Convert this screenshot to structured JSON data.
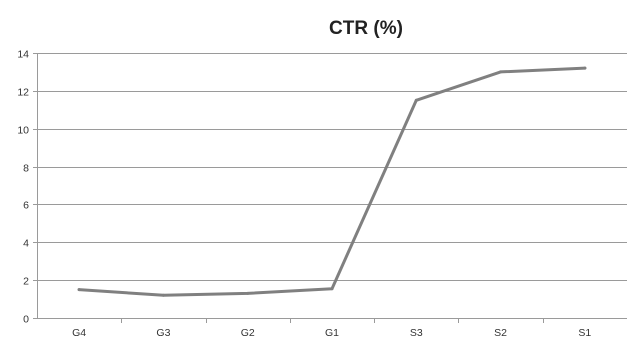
{
  "chart_data": {
    "type": "line",
    "title": "CTR (%)",
    "xlabel": "",
    "ylabel": "",
    "categories": [
      "G4",
      "G3",
      "G2",
      "G1",
      "S3",
      "S2",
      "S1"
    ],
    "series": [
      {
        "values": [
          1.5,
          1.2,
          1.3,
          1.55,
          11.5,
          13.0,
          13.2
        ]
      }
    ],
    "ylim": [
      0,
      14
    ],
    "yticks": [
      0,
      2,
      4,
      6,
      8,
      10,
      12,
      14
    ],
    "grid": true,
    "legend": "none",
    "colors": {
      "line": "#808080",
      "grid": "#9a9a9a"
    }
  }
}
